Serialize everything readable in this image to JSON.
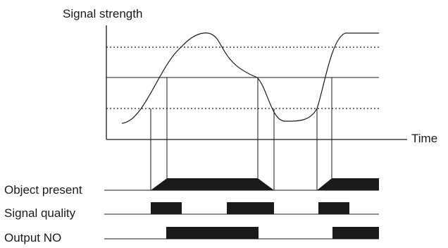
{
  "labels": {
    "y_axis": "Signal strength",
    "x_axis": "Time",
    "object_present": "Object present",
    "signal_quality": "Signal quality",
    "output_no": "Output NO"
  },
  "colors": {
    "ink": "#1a1a1a",
    "background": "#ffffff"
  }
}
